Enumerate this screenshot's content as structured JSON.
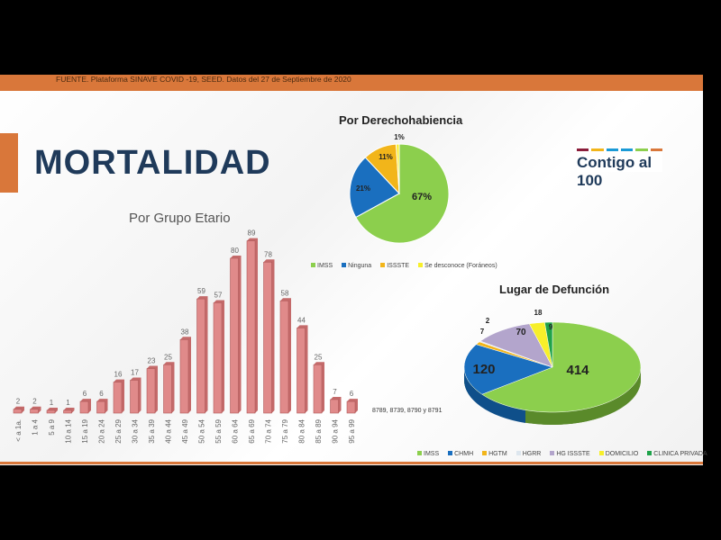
{
  "source": "FUENTE. Plataforma SINAVE COVID -19, SEED. Datos del 27 de Septiembre de 2020",
  "title": "MORTALIDAD",
  "logo_text": "Contigo al 100",
  "note": "8789, 8739, 8790 y 8791",
  "chart_data": [
    {
      "type": "bar",
      "title": "Por Grupo Etario",
      "bar_color": "#e08a8a",
      "categories": [
        "< a 1a.",
        "1 a 4",
        "5 a 9",
        "10 a 14",
        "15 a 19",
        "20 a 24",
        "25 a 29",
        "30 a 34",
        "35 a 39",
        "40 a 44",
        "45 a 49",
        "50 a 54",
        "55 a 59",
        "60 a 64",
        "65 a 69",
        "70 a 74",
        "75 a 79",
        "80 a 84",
        "85 a 89",
        "90 a 94",
        "95 a 99"
      ],
      "values": [
        2,
        2,
        1,
        1,
        6,
        6,
        16,
        17,
        23,
        25,
        38,
        59,
        57,
        80,
        89,
        78,
        58,
        44,
        25,
        7,
        6
      ]
    },
    {
      "type": "pie",
      "title": "Por Derechohabiencia",
      "legend": "bottom",
      "slices": [
        {
          "name": "IMSS",
          "value": 67,
          "label": "67%",
          "color": "#8ccf4d"
        },
        {
          "name": "Ninguna",
          "value": 21,
          "label": "21%",
          "color": "#1a6fbf"
        },
        {
          "name": "ISSSTE",
          "value": 11,
          "label": "11%",
          "color": "#f2b51a"
        },
        {
          "name": "Se desconoce (Foráneos)",
          "value": 1,
          "label": "1%",
          "color": "#f7ef2a"
        }
      ]
    },
    {
      "type": "pie",
      "title": "Lugar de Defunción",
      "legend": "bottom",
      "slices": [
        {
          "name": "IMSS",
          "value": 414,
          "color": "#8ccf4d"
        },
        {
          "name": "CHMH",
          "value": 120,
          "color": "#1a6fbf"
        },
        {
          "name": "HGTM",
          "value": 7,
          "color": "#f2b51a"
        },
        {
          "name": "HGRR",
          "value": 2,
          "color": "#dde6ee"
        },
        {
          "name": "HG ISSSTE",
          "value": 70,
          "color": "#b3a5cc"
        },
        {
          "name": "DOMICILIO",
          "value": 18,
          "color": "#f7ef2a"
        },
        {
          "name": "CLINICA PRIVADA",
          "value": 9,
          "color": "#1fa34a"
        }
      ]
    }
  ]
}
